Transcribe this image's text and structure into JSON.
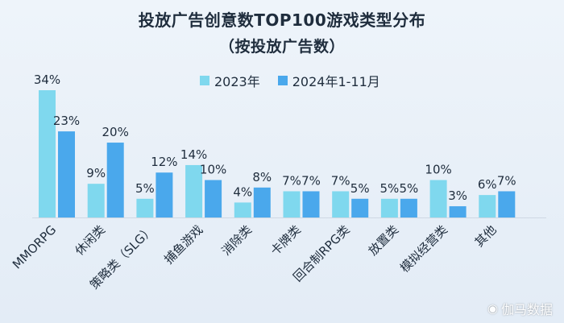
{
  "chart_data": {
    "type": "bar",
    "title": "投放广告创意数TOP100游戏类型分布",
    "subtitle": "（按投放广告数）",
    "categories": [
      "MMORPG",
      "休闲类",
      "策略类（SLG）",
      "捕鱼游戏",
      "消除类",
      "卡牌类",
      "回合制RPG类",
      "放置类",
      "模拟经营类",
      "其他"
    ],
    "series": [
      {
        "name": "2023年",
        "values": [
          34,
          9,
          5,
          14,
          4,
          7,
          7,
          5,
          10,
          6
        ],
        "labels": [
          "34%",
          "9%",
          "5%",
          "14%",
          "4%",
          "7%",
          "7%",
          "5%",
          "10%",
          "6%"
        ],
        "color": "#7fd8ee"
      },
      {
        "name": "2024年1-11月",
        "values": [
          23,
          20,
          12,
          10,
          8,
          7,
          5,
          5,
          3,
          7
        ],
        "labels": [
          "23%",
          "20%",
          "12%",
          "10%",
          "8%",
          "7%",
          "5%",
          "5%",
          "3%",
          "7%"
        ],
        "color": "#4aa8ec"
      }
    ],
    "ylim": [
      0,
      34
    ],
    "grid": false,
    "legend": "top"
  },
  "watermark": "伽马数据",
  "colors": {
    "background": "#e6eef7",
    "text": "#1f2d3d",
    "axis": "#cfd8e3"
  }
}
